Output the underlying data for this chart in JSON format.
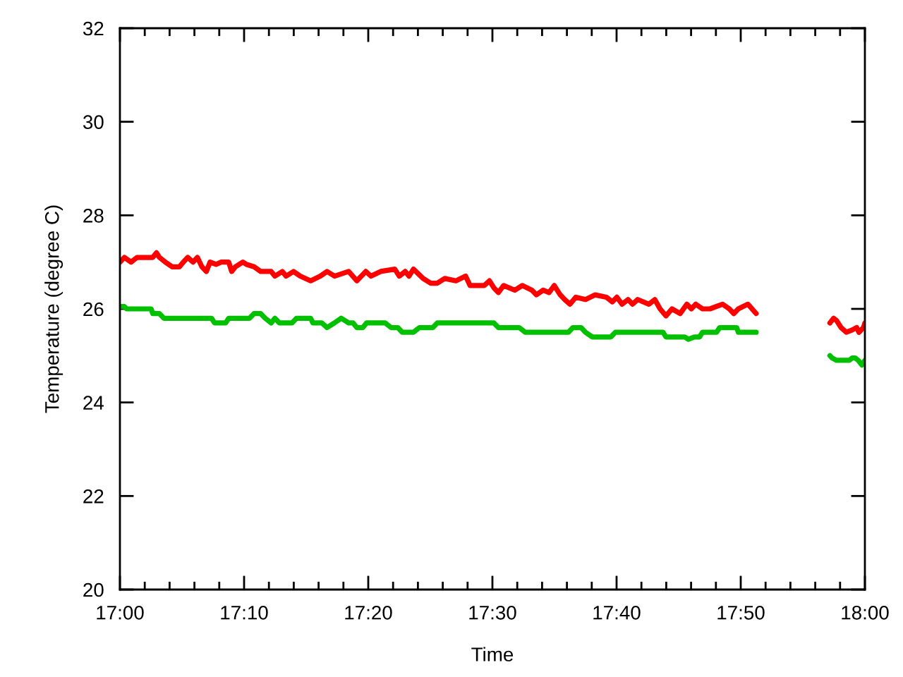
{
  "chart_data": {
    "type": "line",
    "xlabel": "Time",
    "ylabel": "Temperature (degree C)",
    "xlim": [
      17,
      18
    ],
    "xticks": [
      {
        "value": 17,
        "label": "17:00"
      },
      {
        "value": 17.166667,
        "label": "17:10"
      },
      {
        "value": 17.333333,
        "label": "17:20"
      },
      {
        "value": 17.5,
        "label": "17:30"
      },
      {
        "value": 17.666667,
        "label": "17:40"
      },
      {
        "value": 17.833333,
        "label": "17:50"
      },
      {
        "value": 18,
        "label": "18:00"
      }
    ],
    "ylim": [
      20,
      32
    ],
    "yticks": [
      20,
      22,
      24,
      26,
      28,
      30,
      32
    ],
    "line_style": "solid",
    "series": [
      {
        "color": "#ff0000",
        "x": [
          17.0,
          17.006,
          17.015,
          17.023,
          17.044,
          17.049,
          17.053,
          17.061,
          17.07,
          17.08,
          17.085,
          17.091,
          17.098,
          17.104,
          17.11,
          17.116,
          17.121,
          17.129,
          17.136,
          17.146,
          17.15,
          17.155,
          17.165,
          17.17,
          17.18,
          17.189,
          17.203,
          17.208,
          17.218,
          17.223,
          17.233,
          17.242,
          17.256,
          17.269,
          17.278,
          17.288,
          17.307,
          17.318,
          17.33,
          17.337,
          17.35,
          17.369,
          17.375,
          17.383,
          17.388,
          17.394,
          17.407,
          17.417,
          17.426,
          17.436,
          17.451,
          17.464,
          17.47,
          17.489,
          17.496,
          17.502,
          17.508,
          17.515,
          17.53,
          17.54,
          17.553,
          17.559,
          17.568,
          17.576,
          17.583,
          17.591,
          17.597,
          17.604,
          17.612,
          17.625,
          17.638,
          17.653,
          17.661,
          17.667,
          17.674,
          17.682,
          17.688,
          17.695,
          17.71,
          17.718,
          17.725,
          17.733,
          17.741,
          17.752,
          17.761,
          17.767,
          17.773,
          17.782,
          17.792,
          17.809,
          17.818,
          17.824,
          17.83,
          17.843,
          17.854,
          17.9,
          17.953,
          17.958,
          17.962,
          17.968,
          17.975,
          17.983,
          17.989,
          17.992,
          17.998,
          18.0
        ],
        "values": [
          27.0,
          27.1,
          27.0,
          27.1,
          27.1,
          27.2,
          27.1,
          27.0,
          26.9,
          26.9,
          27.0,
          27.1,
          27.0,
          27.1,
          26.9,
          26.8,
          27.0,
          26.95,
          27.0,
          27.0,
          26.8,
          26.9,
          27.0,
          26.95,
          26.9,
          26.8,
          26.8,
          26.7,
          26.8,
          26.7,
          26.8,
          26.7,
          26.6,
          26.7,
          26.8,
          26.7,
          26.8,
          26.6,
          26.8,
          26.7,
          26.8,
          26.85,
          26.7,
          26.8,
          26.7,
          26.85,
          26.65,
          26.55,
          26.55,
          26.65,
          26.6,
          26.7,
          26.5,
          26.5,
          26.6,
          26.45,
          26.35,
          26.5,
          26.4,
          26.5,
          26.4,
          26.3,
          26.4,
          26.35,
          26.5,
          26.3,
          26.2,
          26.1,
          26.25,
          26.2,
          26.3,
          26.25,
          26.15,
          26.25,
          26.1,
          26.2,
          26.1,
          26.2,
          26.1,
          26.2,
          26.0,
          25.85,
          26.0,
          25.9,
          26.1,
          26.0,
          26.1,
          26.0,
          26.0,
          26.1,
          26.0,
          25.9,
          26.0,
          26.1,
          25.9,
          null,
          25.7,
          25.8,
          25.75,
          25.6,
          25.5,
          25.55,
          25.6,
          25.5,
          25.6,
          25.7
        ]
      },
      {
        "color": "#00c000",
        "x": [
          17.0,
          17.006,
          17.009,
          17.042,
          17.044,
          17.053,
          17.059,
          17.123,
          17.127,
          17.142,
          17.146,
          17.174,
          17.18,
          17.189,
          17.195,
          17.203,
          17.208,
          17.214,
          17.231,
          17.237,
          17.256,
          17.259,
          17.271,
          17.278,
          17.288,
          17.297,
          17.307,
          17.313,
          17.318,
          17.326,
          17.331,
          17.356,
          17.364,
          17.373,
          17.379,
          17.394,
          17.402,
          17.42,
          17.426,
          17.502,
          17.508,
          17.536,
          17.544,
          17.602,
          17.608,
          17.619,
          17.625,
          17.634,
          17.659,
          17.665,
          17.729,
          17.733,
          17.758,
          17.763,
          17.771,
          17.778,
          17.782,
          17.801,
          17.805,
          17.828,
          17.83,
          17.854,
          17.9,
          17.953,
          17.956,
          17.962,
          17.979,
          17.983,
          17.987,
          17.991,
          17.996,
          18.0
        ],
        "values": [
          26.05,
          26.05,
          26.0,
          26.0,
          25.9,
          25.9,
          25.8,
          25.8,
          25.7,
          25.7,
          25.8,
          25.8,
          25.9,
          25.9,
          25.8,
          25.7,
          25.8,
          25.7,
          25.7,
          25.8,
          25.8,
          25.7,
          25.7,
          25.6,
          25.7,
          25.8,
          25.7,
          25.7,
          25.6,
          25.6,
          25.7,
          25.7,
          25.6,
          25.6,
          25.5,
          25.5,
          25.6,
          25.6,
          25.7,
          25.7,
          25.6,
          25.6,
          25.5,
          25.5,
          25.6,
          25.6,
          25.5,
          25.4,
          25.4,
          25.5,
          25.5,
          25.4,
          25.4,
          25.35,
          25.4,
          25.4,
          25.5,
          25.5,
          25.6,
          25.6,
          25.5,
          25.5,
          null,
          25.0,
          24.95,
          24.9,
          24.9,
          24.95,
          24.95,
          24.9,
          24.8,
          24.9
        ]
      }
    ]
  }
}
